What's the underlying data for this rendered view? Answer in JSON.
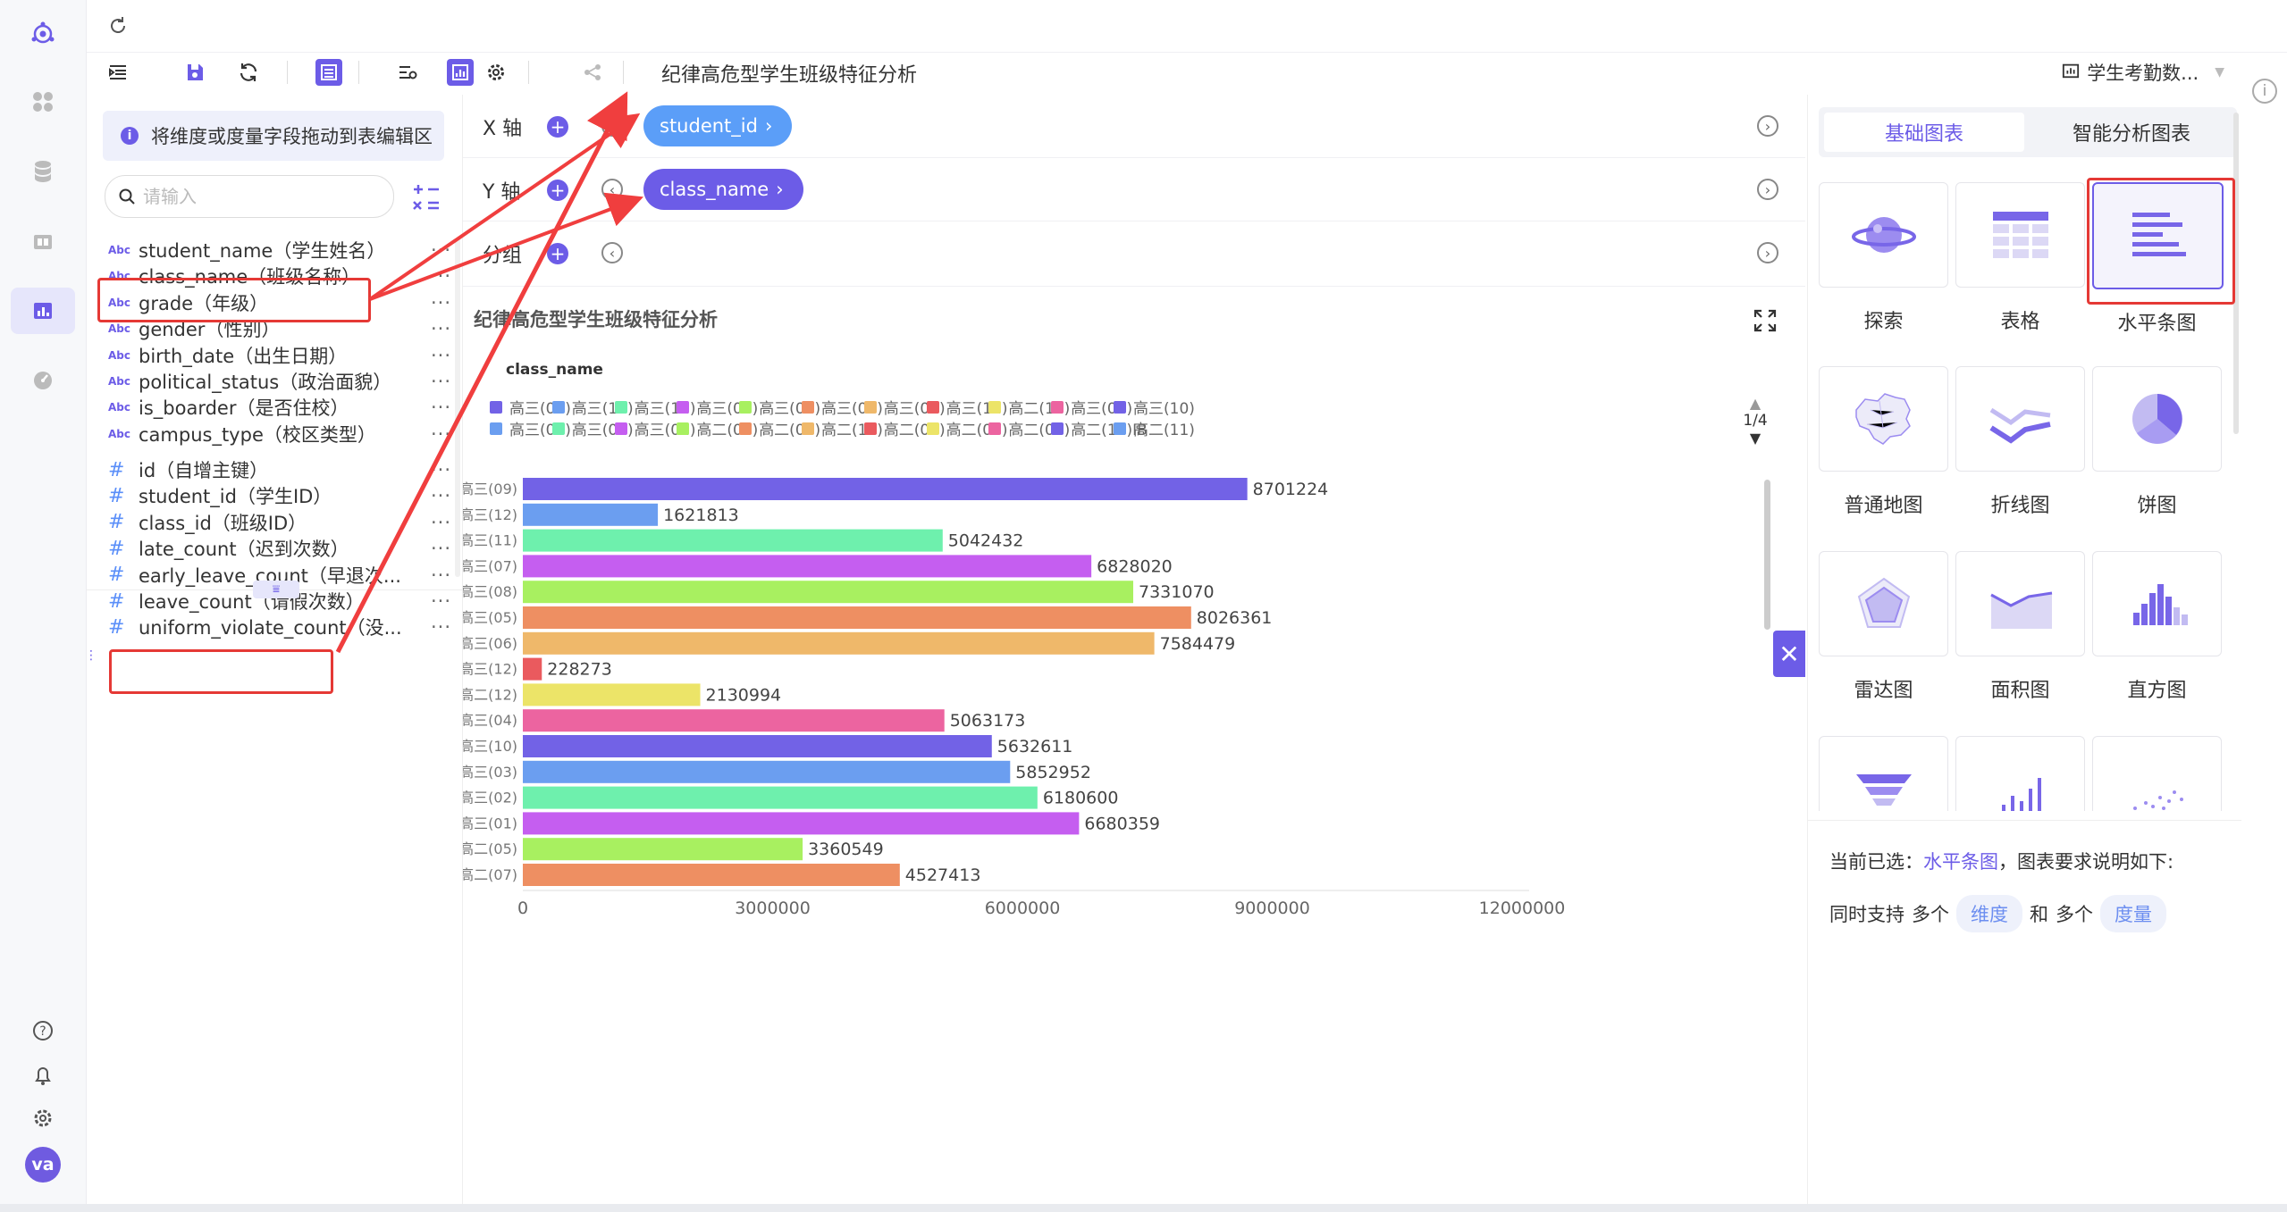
{
  "toolbar": {
    "title": "纪律高危型学生班级特征分析",
    "dataset": "学生考勤数..."
  },
  "fields": {
    "hint": "将维度或度量字段拖动到表编辑区",
    "search_placeholder": "请输入",
    "dimension_type": "Abc",
    "measure_type": "#",
    "dimensions": [
      "student_name（学生姓名）",
      "class_name（班级名称）",
      "grade（年级）",
      "gender（性别）",
      "birth_date（出生日期）",
      "political_status（政治面貌）",
      "is_boarder（是否住校）",
      "campus_type（校区类型）"
    ],
    "measures": [
      "id（自增主键）",
      "student_id（学生ID）",
      "class_id（班级ID）",
      "late_count（迟到次数）",
      "early_leave_count（早退次...",
      "leave_count（请假次数）",
      "uniform_violate_count（没..."
    ],
    "more": "···"
  },
  "axes": {
    "x_label": "X 轴",
    "y_label": "Y 轴",
    "group_label": "分组",
    "x_field": "student_id",
    "y_field": "class_name"
  },
  "chart_data": {
    "type": "bar",
    "orientation": "horizontal",
    "title": "纪律高危型学生班级特征分析",
    "legend_title": "class_name",
    "legend_page": "1/4",
    "legend_entries": [
      {
        "name": "高三(09)",
        "color": "#7262e6"
      },
      {
        "name": "高三(12)",
        "color": "#6b9ef0"
      },
      {
        "name": "高三(11)",
        "color": "#6ef0ad"
      },
      {
        "name": "高三(07)",
        "color": "#c55ef0"
      },
      {
        "name": "高三(08)",
        "color": "#a8f060"
      },
      {
        "name": "高三(05)",
        "color": "#ee8f62"
      },
      {
        "name": "高三(06)",
        "color": "#efb86a"
      },
      {
        "name": "高三(12)",
        "color": "#ea5a5e"
      },
      {
        "name": "高二(12)",
        "color": "#ece468"
      },
      {
        "name": "高三(04)",
        "color": "#ec64a0"
      },
      {
        "name": "高三(10)",
        "color": "#7262e6"
      },
      {
        "name": "高三(03)",
        "color": "#6b9ef0"
      },
      {
        "name": "高三(02)",
        "color": "#6ef0ad"
      },
      {
        "name": "高三(01)",
        "color": "#c55ef0"
      },
      {
        "name": "高二(05)",
        "color": "#a8f060"
      },
      {
        "name": "高二(07)",
        "color": "#ee8f62"
      },
      {
        "name": "高二(10)",
        "color": "#efb86a"
      },
      {
        "name": "高二(09)",
        "color": "#ea5a5e"
      },
      {
        "name": "高二(08)",
        "color": "#ece468"
      },
      {
        "name": "高二(06)",
        "color": "#ec64a0"
      },
      {
        "name": "高二(12)IB",
        "color": "#7262e6"
      },
      {
        "name": "高二(11)",
        "color": "#6b9ef0"
      }
    ],
    "categories": [
      "高三(09)",
      "高三(12)",
      "高三(11)",
      "高三(07)",
      "高三(08)",
      "高三(05)",
      "高三(06)",
      "高三(12)",
      "高二(12)",
      "高三(04)",
      "高三(10)",
      "高三(03)",
      "高三(02)",
      "高三(01)",
      "高二(05)",
      "高二(07)"
    ],
    "values": [
      8701224,
      1621813,
      5042432,
      6828020,
      7331070,
      8026361,
      7584479,
      228273,
      2130994,
      5063173,
      5632611,
      5852952,
      6180600,
      6680359,
      3360549,
      4527413
    ],
    "colors": [
      "#7262e6",
      "#6b9ef0",
      "#6ef0ad",
      "#c55ef0",
      "#a8f060",
      "#ee8f62",
      "#efb86a",
      "#ea5a5e",
      "#ece468",
      "#ec64a0",
      "#7262e6",
      "#6b9ef0",
      "#6ef0ad",
      "#c55ef0",
      "#a8f060",
      "#ee8f62"
    ],
    "xlim": [
      0,
      12000000
    ],
    "xticks": [
      0,
      3000000,
      6000000,
      9000000,
      12000000
    ]
  },
  "charts": {
    "tab_basic": "基础图表",
    "tab_smart": "智能分析图表",
    "types": [
      "探索",
      "表格",
      "水平条图",
      "普通地图",
      "折线图",
      "饼图",
      "雷达图",
      "面积图",
      "直方图"
    ],
    "selected": "水平条图",
    "desc_prefix": "当前已选：",
    "desc_suffix": "，图表要求说明如下:",
    "desc_support": "同时支持",
    "desc_many1": "多个",
    "desc_dim": "维度",
    "desc_and": "和",
    "desc_many2": "多个",
    "desc_measure": "度量"
  },
  "user": {
    "avatar": "va"
  },
  "colors": {
    "accent": "#6c5ce7",
    "highlight": "#e53935"
  }
}
